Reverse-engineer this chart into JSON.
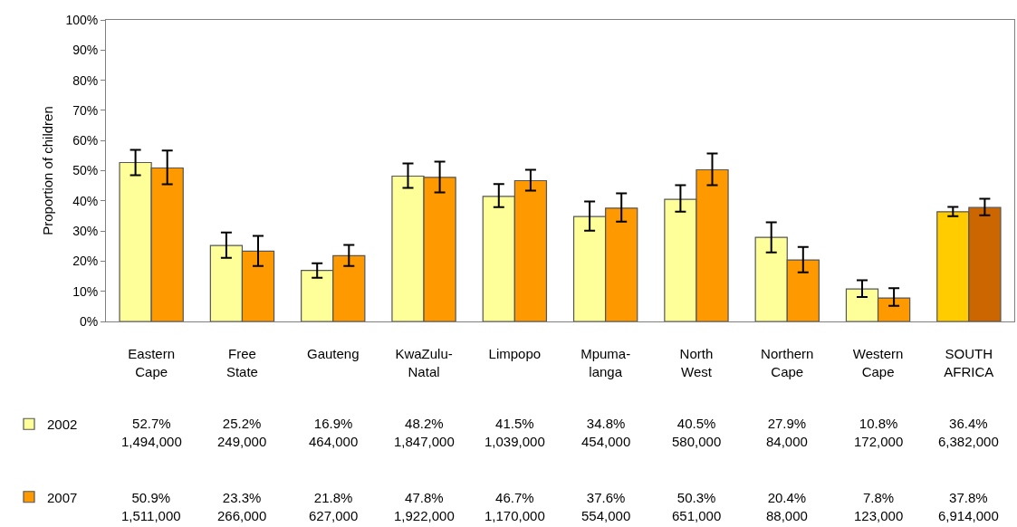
{
  "chart_data": {
    "type": "bar",
    "ylabel": "Proportion of children",
    "categories": [
      "Eastern\nCape",
      "Free\nState",
      "Gauteng",
      "KwaZulu-\nNatal",
      "Limpopo",
      "Mpuma-\nlanga",
      "North\nWest",
      "Northern\nCape",
      "Western\nCape",
      "SOUTH\nAFRICA"
    ],
    "series": [
      {
        "name": "2002",
        "colors": [
          "#ffff99",
          "#ffff99",
          "#ffff99",
          "#ffff99",
          "#ffff99",
          "#ffff99",
          "#ffff99",
          "#ffff99",
          "#ffff99",
          "#ffcc00"
        ],
        "values": [
          52.7,
          25.2,
          16.9,
          48.2,
          41.5,
          34.8,
          40.5,
          27.9,
          10.8,
          36.4
        ],
        "errors": [
          [
            48.5,
            56.9
          ],
          [
            21.1,
            29.5
          ],
          [
            14.5,
            19.3
          ],
          [
            44.3,
            52.4
          ],
          [
            37.9,
            45.6
          ],
          [
            30.1,
            39.8
          ],
          [
            36.4,
            45.2
          ],
          [
            22.9,
            32.9
          ],
          [
            8.1,
            13.7
          ],
          [
            34.9,
            38.0
          ]
        ],
        "value_labels": [
          "52.7%\n1,494,000",
          "25.2%\n249,000",
          "16.9%\n464,000",
          "48.2%\n1,847,000",
          "41.5%\n1,039,000",
          "34.8%\n454,000",
          "40.5%\n580,000",
          "27.9%\n84,000",
          "10.8%\n172,000",
          "36.4%\n6,382,000"
        ]
      },
      {
        "name": "2007",
        "colors": [
          "#ff9900",
          "#ff9900",
          "#ff9900",
          "#ff9900",
          "#ff9900",
          "#ff9900",
          "#ff9900",
          "#ff9900",
          "#ff9900",
          "#cc6600"
        ],
        "values": [
          50.9,
          23.3,
          21.8,
          47.8,
          46.7,
          37.6,
          50.3,
          20.4,
          7.8,
          37.8
        ],
        "errors": [
          [
            45.5,
            56.7
          ],
          [
            18.4,
            28.4
          ],
          [
            18.4,
            25.4
          ],
          [
            42.8,
            53.0
          ],
          [
            43.4,
            50.3
          ],
          [
            33.1,
            42.5
          ],
          [
            45.2,
            55.7
          ],
          [
            16.3,
            24.7
          ],
          [
            5.2,
            11.0
          ],
          [
            35.2,
            40.7
          ]
        ],
        "value_labels": [
          "50.9%\n1,511,000",
          "23.3%\n266,000",
          "21.8%\n627,000",
          "47.8%\n1,922,000",
          "46.7%\n1,170,000",
          "37.6%\n554,000",
          "50.3%\n651,000",
          "20.4%\n88,000",
          "7.8%\n123,000",
          "37.8%\n6,914,000"
        ]
      }
    ],
    "ylim": [
      0,
      100
    ],
    "yticks": [
      {
        "value": 0,
        "label": "0%"
      },
      {
        "value": 10,
        "label": "10%"
      },
      {
        "value": 20,
        "label": "20%"
      },
      {
        "value": 30,
        "label": "30%"
      },
      {
        "value": 40,
        "label": "40%"
      },
      {
        "value": 50,
        "label": "50%"
      },
      {
        "value": 60,
        "label": "60%"
      },
      {
        "value": 70,
        "label": "70%"
      },
      {
        "value": 80,
        "label": "80%"
      },
      {
        "value": 90,
        "label": "90%"
      },
      {
        "value": 100,
        "label": "100%"
      }
    ],
    "grid": false,
    "legend": "bottom left"
  }
}
